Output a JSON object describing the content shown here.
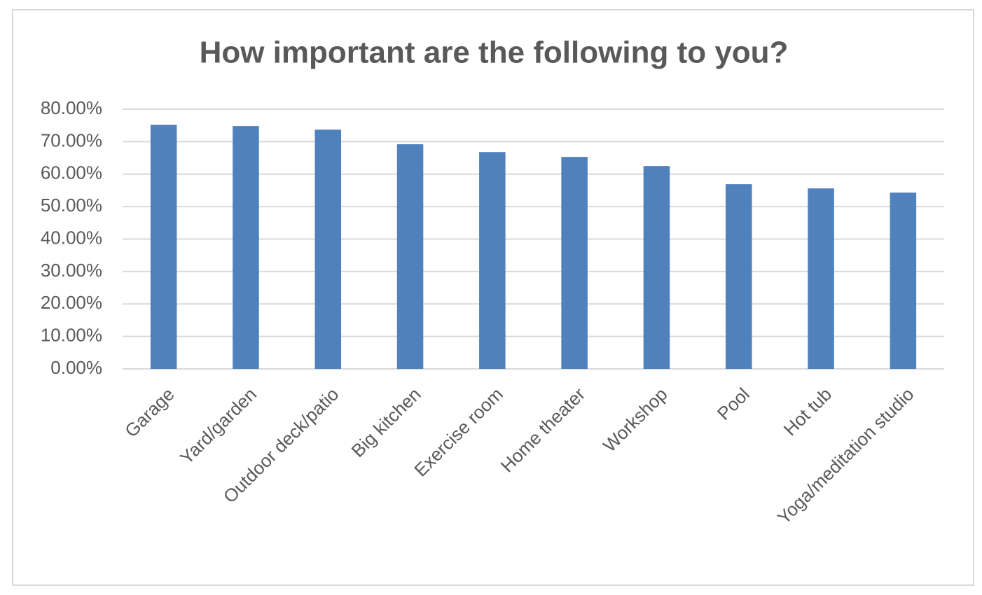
{
  "chart_data": {
    "type": "bar",
    "title": "How important are the following to you?",
    "categories": [
      "Garage",
      "Yard/garden",
      "Outdoor deck/patio",
      "Big kitchen",
      "Exercise room",
      "Home theater",
      "Workshop",
      "Pool",
      "Hot tub",
      "Yoga/meditation studio"
    ],
    "values": [
      75.2,
      74.8,
      73.7,
      69.2,
      66.8,
      65.3,
      62.5,
      56.9,
      55.6,
      54.3
    ],
    "color": "#4f81bd",
    "ylim": [
      0,
      80
    ],
    "yticks": [
      {
        "value": 0,
        "label": "0.00%"
      },
      {
        "value": 10,
        "label": "10.00%"
      },
      {
        "value": 20,
        "label": "20.00%"
      },
      {
        "value": 30,
        "label": "30.00%"
      },
      {
        "value": 40,
        "label": "40.00%"
      },
      {
        "value": 50,
        "label": "50.00%"
      },
      {
        "value": 60,
        "label": "60.00%"
      },
      {
        "value": 70,
        "label": "70.00%"
      },
      {
        "value": 80,
        "label": "80.00%"
      }
    ],
    "grid": true
  }
}
